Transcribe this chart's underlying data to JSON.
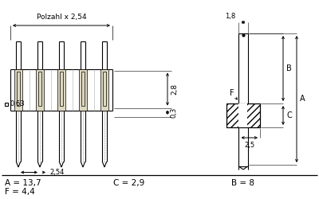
{
  "title": "",
  "bg_color": "#ffffff",
  "text_color": "#000000",
  "line_color": "#000000",
  "annotations": {
    "polzahl": "Polzahl x 2,54",
    "dim_063": "0,63",
    "dim_254": "2,54",
    "dim_28": "2,8",
    "dim_03": "0,3",
    "dim_18": "1,8",
    "dim_25": "2,5",
    "label_A": "A",
    "label_B": "B",
    "label_C": "C",
    "label_F": "F",
    "val_A": "A = 13,7",
    "val_C": "C = 2,9",
    "val_B": "B = 8",
    "val_F": "F = 4,4"
  },
  "num_pins": 5,
  "figsize": [
    4.0,
    2.5
  ],
  "dpi": 100
}
